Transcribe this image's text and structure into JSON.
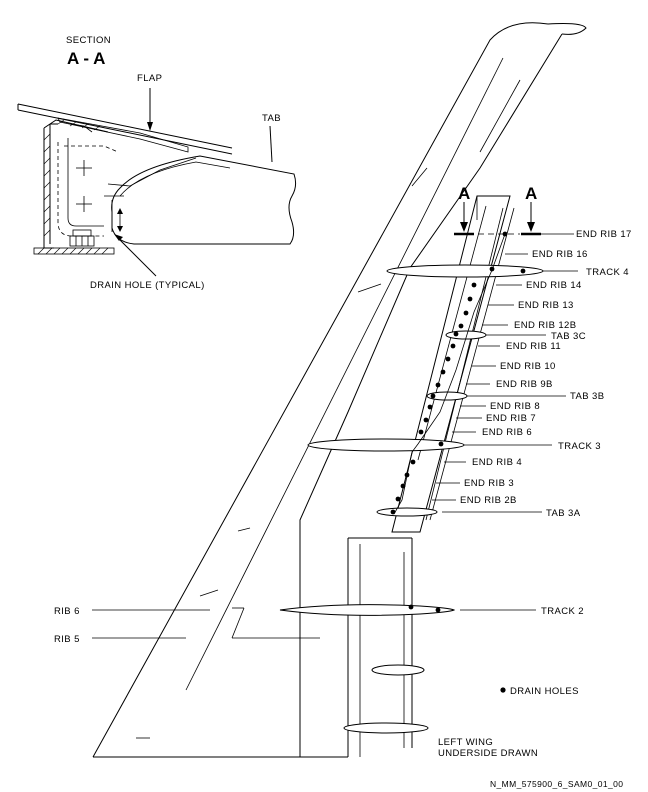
{
  "section": {
    "heading": "SECTION",
    "title": "A - A"
  },
  "detail_labels": {
    "flap": "FLAP",
    "tab": "TAB",
    "drain_hole": "DRAIN HOLE (TYPICAL)"
  },
  "section_markers": {
    "left": "A",
    "right": "A"
  },
  "callouts": {
    "end_rib_17": "END RIB 17",
    "end_rib_16": "END RIB 16",
    "track_4": "TRACK 4",
    "end_rib_14": "END RIB 14",
    "end_rib_13": "END RIB 13",
    "end_rib_12b": "END RIB 12B",
    "tab_3c": "TAB 3C",
    "end_rib_11": "END RIB 11",
    "end_rib_10": "END RIB 10",
    "end_rib_9b": "END RIB 9B",
    "tab_3b": "TAB 3B",
    "end_rib_8": "END RIB 8",
    "end_rib_7": "END RIB 7",
    "end_rib_6": "END RIB 6",
    "track_3": "TRACK 3",
    "end_rib_4": "END RIB 4",
    "end_rib_3": "END RIB 3",
    "end_rib_2b": "END RIB 2B",
    "tab_3a": "TAB 3A",
    "track_2": "TRACK 2",
    "rib_6": "RIB 6",
    "rib_5": "RIB 5"
  },
  "legend": {
    "drain_holes": "DRAIN HOLES"
  },
  "note": {
    "line1": "LEFT WING",
    "line2": "UNDERSIDE DRAWN"
  },
  "figure_id": "N_MM_575900_6_SAM0_01_00"
}
